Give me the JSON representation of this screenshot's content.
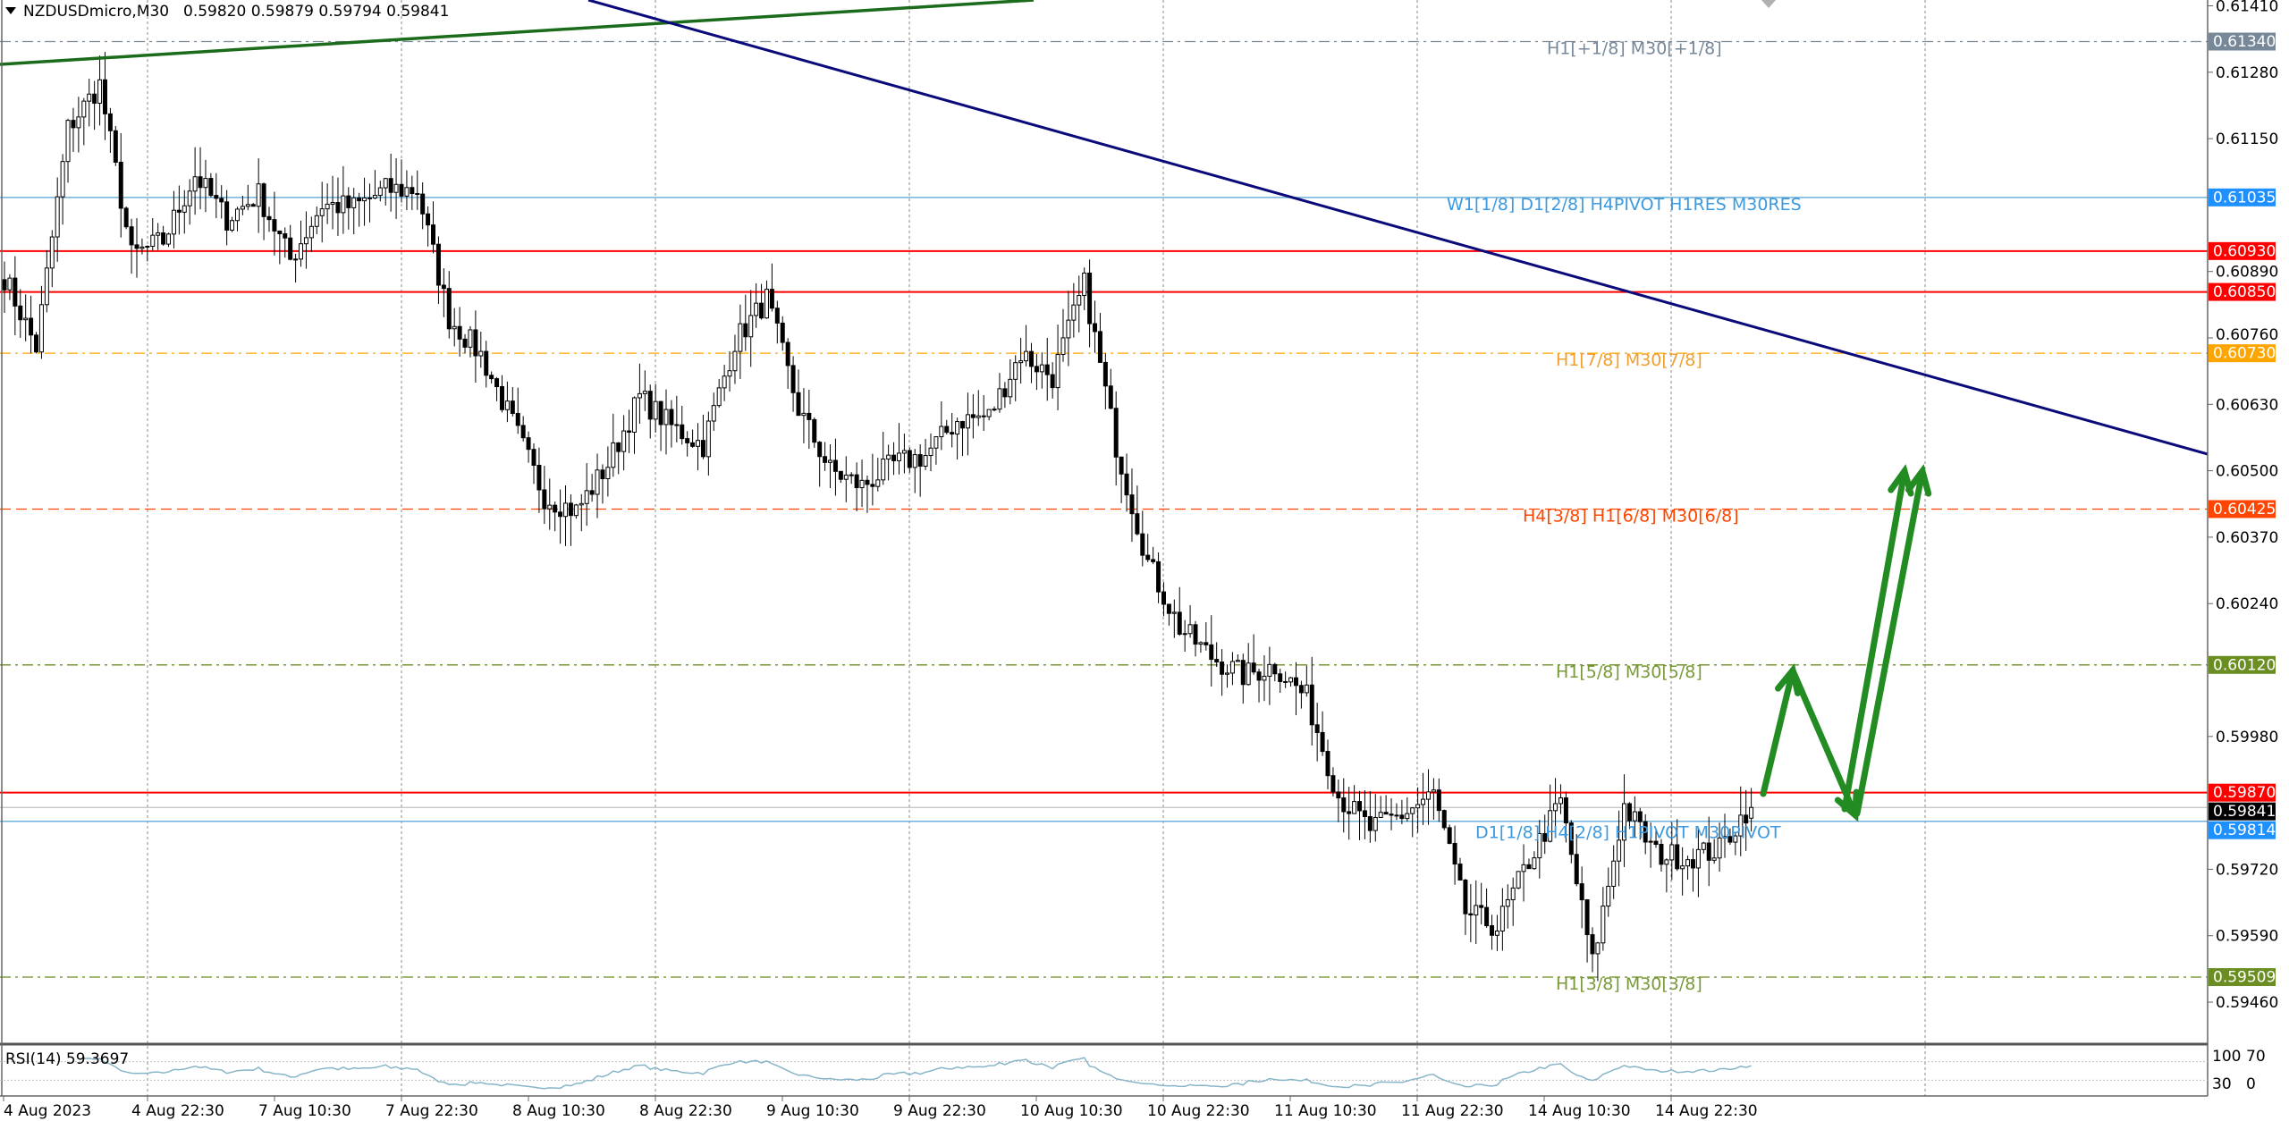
{
  "header": {
    "symbol_timeframe": "NZDUSDmicro,M30",
    "ohlc": "0.59820 0.59879 0.59794 0.59841"
  },
  "chart_data": {
    "type": "candlestick",
    "symbol": "NZDUSDmicro",
    "timeframe": "M30",
    "last_candle": {
      "open": 0.5982,
      "high": 0.59879,
      "low": 0.59794,
      "close": 0.59841
    },
    "approx_close_every_3h": [
      0.60879,
      0.60741,
      0.6117,
      0.61256,
      0.60921,
      0.6095,
      0.61079,
      0.60993,
      0.61041,
      0.60913,
      0.61021,
      0.61016,
      0.6105,
      0.6105,
      0.60799,
      0.60727,
      0.60593,
      0.6045,
      0.60421,
      0.60513,
      0.60644,
      0.60587,
      0.6055,
      0.60753,
      0.60836,
      0.60621,
      0.60501,
      0.6047,
      0.60513,
      0.6053,
      0.60599,
      0.60607,
      0.6073,
      0.60684,
      0.60864,
      0.6055,
      0.60321,
      0.60193,
      0.60136,
      0.60099,
      0.60119,
      0.60056,
      0.59864,
      0.59799,
      0.59827,
      0.59867,
      0.59636,
      0.59607,
      0.59736,
      0.59853,
      0.59536,
      0.59844,
      0.5975,
      0.59744,
      0.59759,
      0.5985
    ],
    "ylim": [
      0.594,
      0.6142
    ],
    "y_ticks": [
      "0.61410",
      "0.61280",
      "0.61150",
      "0.60890",
      "0.60760",
      "0.60630",
      "0.60500",
      "0.60370",
      "0.60240",
      "0.59980",
      "0.59720",
      "0.59590",
      "0.59460"
    ],
    "x_ticks": [
      "4 Aug 2023",
      "4 Aug 22:30",
      "7 Aug 10:30",
      "7 Aug 22:30",
      "8 Aug 10:30",
      "8 Aug 22:30",
      "9 Aug 10:30",
      "9 Aug 22:30",
      "10 Aug 10:30",
      "10 Aug 22:30",
      "11 Aug 10:30",
      "11 Aug 22:30",
      "14 Aug 10:30",
      "14 Aug 22:30"
    ],
    "grid": "vertical dashed",
    "levels": [
      {
        "price": 0.6134,
        "price_label": "0.61340",
        "label": "H1[+1/8] M30[+1/8]",
        "color": "#778899",
        "style": "dashdot"
      },
      {
        "price": 0.61035,
        "price_label": "0.61035",
        "label": "W1[1/8] D1[2/8] H4PIVOT H1RES M30RES",
        "color": "#1e90ff",
        "style": "solid"
      },
      {
        "price": 0.6093,
        "price_label": "0.60930",
        "label": "",
        "color": "#ff0000",
        "style": "solid"
      },
      {
        "price": 0.6085,
        "price_label": "0.60850",
        "label": "",
        "color": "#ff0000",
        "style": "solid"
      },
      {
        "price": 0.6073,
        "price_label": "0.60730",
        "label": "H1[7/8] M30[7/8]",
        "color": "#ffa500",
        "style": "dashdot"
      },
      {
        "price": 0.60425,
        "price_label": "0.60425",
        "label": "H4[3/8] H1[6/8] M30[6/8]",
        "color": "#ff4500",
        "style": "dashed"
      },
      {
        "price": 0.6012,
        "price_label": "0.60120",
        "label": "H1[5/8] M30[5/8]",
        "color": "#6b8e23",
        "style": "dashdot"
      },
      {
        "price": 0.5987,
        "price_label": "0.59870",
        "label": "",
        "color": "#ff0000",
        "style": "solid"
      },
      {
        "price": 0.59841,
        "price_label": "0.59841",
        "label": "",
        "color": "#000000",
        "style": "current"
      },
      {
        "price": 0.59814,
        "price_label": "0.59814",
        "label": "D1[1/8] H4[2/8] H1PIVOT M30PIVOT",
        "color": "#1e90ff",
        "style": "solid"
      },
      {
        "price": 0.59509,
        "price_label": "0.59509",
        "label": "H1[3/8] M30[3/8]",
        "color": "#6b8e23",
        "style": "dashdot"
      }
    ],
    "trendlines": [
      {
        "name": "green-trendline",
        "color": "#1a6b1a"
      },
      {
        "name": "navy-trendline",
        "color": "#0a0a7a"
      }
    ],
    "projection_arrows_color": "#228b22",
    "bull_candle_color": "#ffffff",
    "bear_candle_color": "#000000"
  },
  "rsi": {
    "label": "RSI(14) 59.3697",
    "period": 14,
    "levels": [
      70,
      30
    ],
    "axis_labels": [
      "100",
      "70",
      "30",
      "0"
    ],
    "color": "#87b5c8"
  }
}
